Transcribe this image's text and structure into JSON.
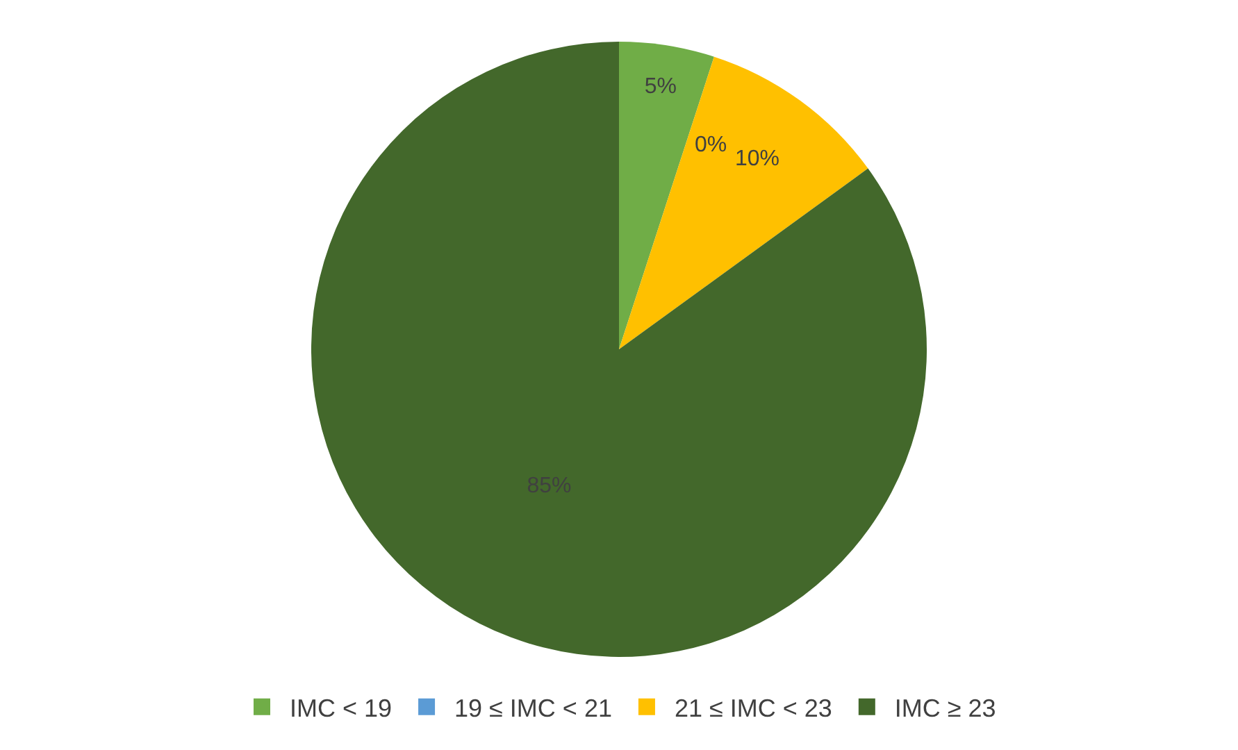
{
  "chart_data": {
    "type": "pie",
    "categories": [
      "IMC < 19",
      "19 ≤ IMC < 21",
      "21 ≤ IMC < 23",
      "IMC ≥ 23"
    ],
    "values": [
      5,
      0,
      10,
      85
    ],
    "colors": [
      "#70ad47",
      "#5b9bd5",
      "#ffc000",
      "#43682b"
    ],
    "value_labels": [
      "5%",
      "0%",
      "10%",
      "85%"
    ],
    "legend": "bottom"
  }
}
